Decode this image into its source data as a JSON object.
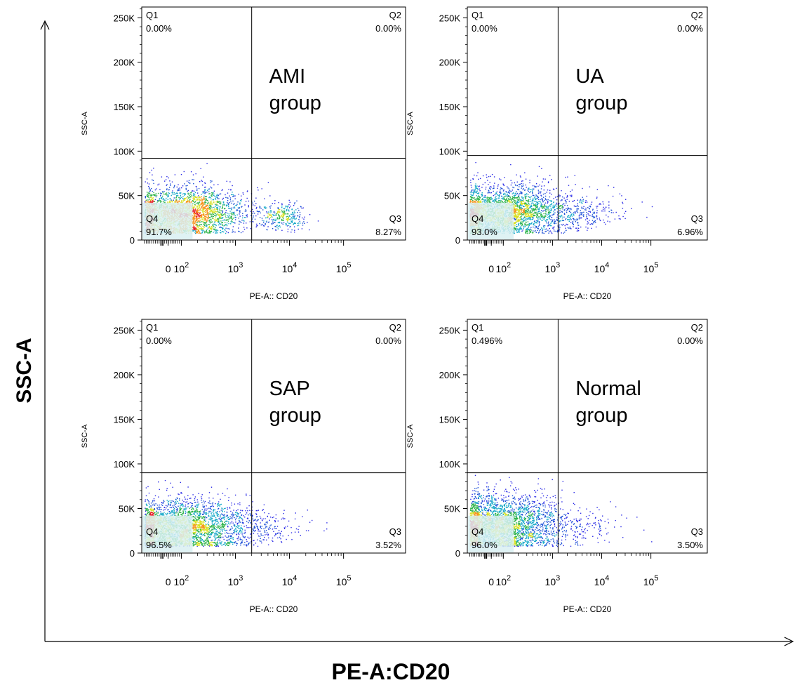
{
  "figure": {
    "y_axis_label": "SSC-A",
    "x_axis_label": "PE-A:CD20"
  },
  "chart_data": [
    {
      "type": "scatter",
      "group_label": [
        "AMI",
        "group"
      ],
      "xlabel": "PE-A:: CD20",
      "ylabel": "SSC-A",
      "x_scale": "biexponential",
      "x_ticks": [
        "0",
        "10^2",
        "10^3",
        "10^4",
        "10^5"
      ],
      "y_ticks": [
        "0",
        "50K",
        "100K",
        "150K",
        "200K",
        "250K"
      ],
      "ylim": [
        0,
        262144
      ],
      "quadrant_gate": {
        "x": 2000,
        "y": 92000
      },
      "quadrants": [
        {
          "name": "Q1",
          "percent": "0.00%"
        },
        {
          "name": "Q2",
          "percent": "0.00%"
        },
        {
          "name": "Q3",
          "percent": "8.27%"
        },
        {
          "name": "Q4",
          "percent": "91.7%"
        }
      ],
      "populations": [
        {
          "x_center": 110,
          "x_spread": 0.55,
          "y_center": 30000,
          "y_spread": 15000,
          "count": 2700
        },
        {
          "x_center": 7500,
          "x_spread": 0.22,
          "y_center": 26000,
          "y_spread": 8000,
          "count": 320
        }
      ]
    },
    {
      "type": "scatter",
      "group_label": [
        "UA",
        "group"
      ],
      "xlabel": "PE-A:: CD20",
      "ylabel": "SSC-A",
      "x_scale": "biexponential",
      "x_ticks": [
        "0",
        "10^2",
        "10^3",
        "10^4",
        "10^5"
      ],
      "y_ticks": [
        "0",
        "50K",
        "100K",
        "150K",
        "200K",
        "250K"
      ],
      "ylim": [
        0,
        262144
      ],
      "quadrant_gate": {
        "x": 1300,
        "y": 95000
      },
      "quadrants": [
        {
          "name": "Q1",
          "percent": "0.00%"
        },
        {
          "name": "Q2",
          "percent": "0.00%"
        },
        {
          "name": "Q3",
          "percent": "6.96%"
        },
        {
          "name": "Q4",
          "percent": "93.0%"
        }
      ],
      "populations": [
        {
          "x_center": 110,
          "x_spread": 0.6,
          "y_center": 32000,
          "y_spread": 15000,
          "count": 2700
        },
        {
          "x_center": 3500,
          "x_spread": 0.45,
          "y_center": 30000,
          "y_spread": 9000,
          "count": 300
        }
      ]
    },
    {
      "type": "scatter",
      "group_label": [
        "SAP",
        "group"
      ],
      "xlabel": "PE-A:: CD20",
      "ylabel": "SSC-A",
      "x_scale": "biexponential",
      "x_ticks": [
        "0",
        "10^2",
        "10^3",
        "10^4",
        "10^5"
      ],
      "y_ticks": [
        "0",
        "50K",
        "100K",
        "150K",
        "200K",
        "250K"
      ],
      "ylim": [
        0,
        262144
      ],
      "quadrant_gate": {
        "x": 2000,
        "y": 90000
      },
      "quadrants": [
        {
          "name": "Q1",
          "percent": "0.00%"
        },
        {
          "name": "Q2",
          "percent": "0.00%"
        },
        {
          "name": "Q3",
          "percent": "3.52%"
        },
        {
          "name": "Q4",
          "percent": "96.5%"
        }
      ],
      "populations": [
        {
          "x_center": 110,
          "x_spread": 0.65,
          "y_center": 30000,
          "y_spread": 15000,
          "count": 2900
        },
        {
          "x_center": 3500,
          "x_spread": 0.45,
          "y_center": 28000,
          "y_spread": 9000,
          "count": 140
        }
      ]
    },
    {
      "type": "scatter",
      "group_label": [
        "Normal",
        "group"
      ],
      "xlabel": "PE-A:: CD20",
      "ylabel": "SSC-A",
      "x_scale": "biexponential",
      "x_ticks": [
        "0",
        "10^2",
        "10^3",
        "10^4",
        "10^5"
      ],
      "y_ticks": [
        "0",
        "50K",
        "100K",
        "150K",
        "200K",
        "250K"
      ],
      "ylim": [
        0,
        262144
      ],
      "quadrant_gate": {
        "x": 1300,
        "y": 90000
      },
      "quadrants": [
        {
          "name": "Q1",
          "percent": "0.496%"
        },
        {
          "name": "Q2",
          "percent": "0.00%"
        },
        {
          "name": "Q3",
          "percent": "3.50%"
        },
        {
          "name": "Q4",
          "percent": "96.0%"
        }
      ],
      "populations": [
        {
          "x_center": 90,
          "x_spread": 0.6,
          "y_center": 32000,
          "y_spread": 17000,
          "count": 2900
        },
        {
          "x_center": 4000,
          "x_spread": 0.45,
          "y_center": 30000,
          "y_spread": 9000,
          "count": 130
        }
      ]
    }
  ]
}
